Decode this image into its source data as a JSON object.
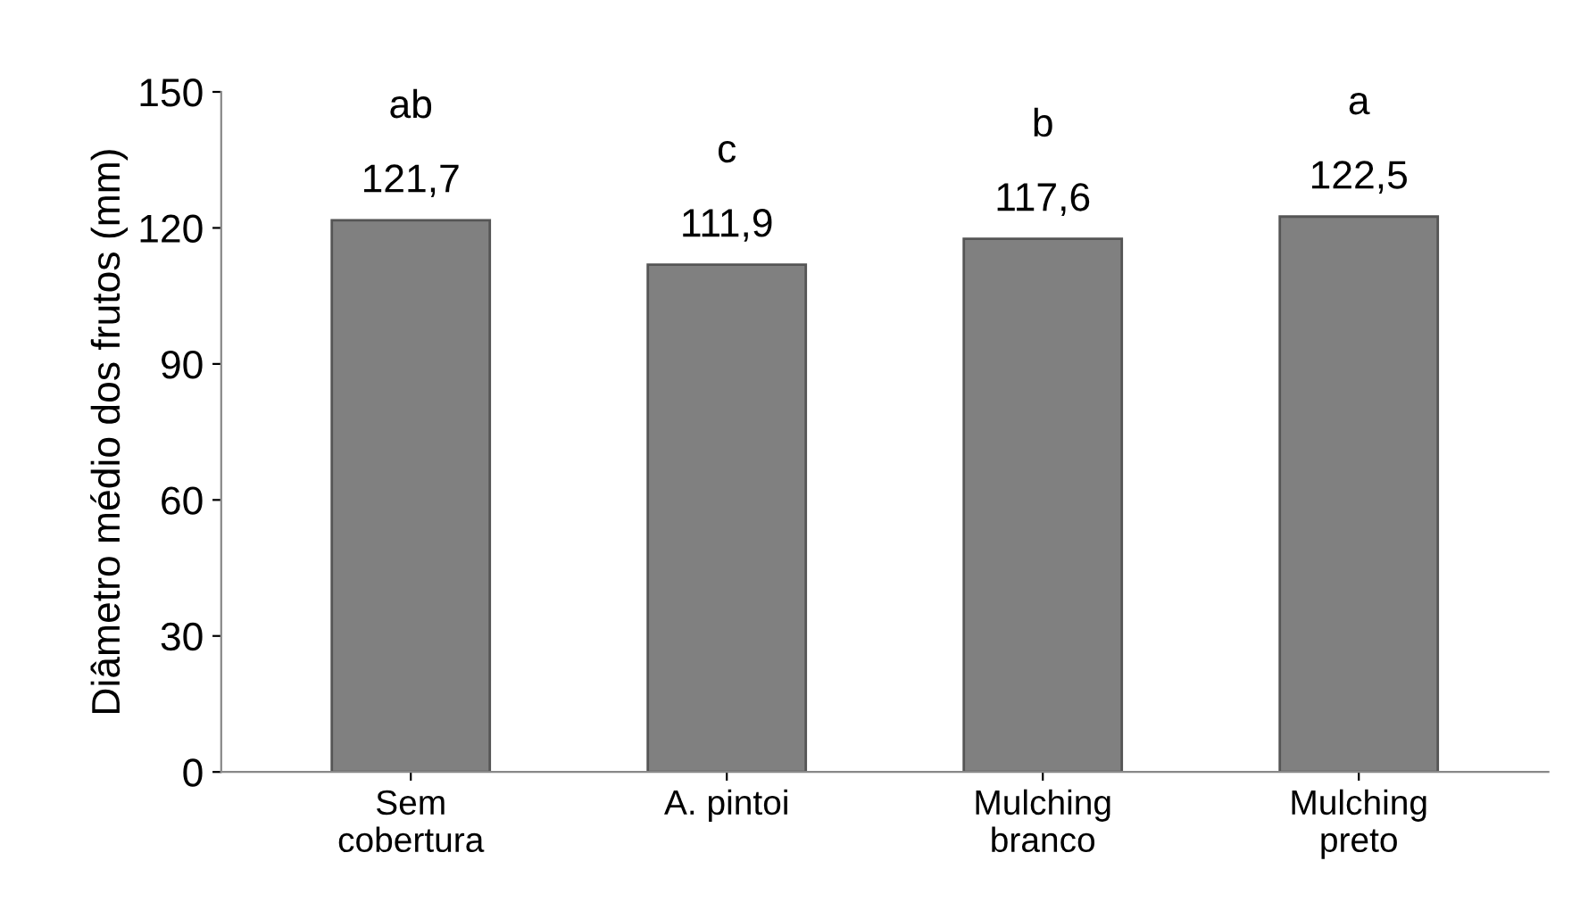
{
  "chart_data": {
    "type": "bar",
    "ylabel": "Diâmetro médio dos frutos (mm)",
    "categories": [
      "Sem\ncobertura",
      "A. pintoi",
      "Mulching\nbranco",
      "Mulching\npreto"
    ],
    "values": [
      121.7,
      111.9,
      117.6,
      122.5
    ],
    "color": "#808080",
    "value_labels": [
      "121,7",
      "111,9",
      "117,6",
      "122,5"
    ],
    "ylim": [
      0,
      150
    ],
    "yticks": [
      0,
      30,
      60,
      90,
      120,
      150
    ],
    "grid": false,
    "legend": false,
    "annotations": [
      {
        "text": "ab",
        "x": "Sem\ncobertura",
        "y": 121.7
      },
      {
        "text": "c",
        "x": "A. pintoi",
        "y": 111.9
      },
      {
        "text": "b",
        "x": "Mulching\nbranco",
        "y": 117.6
      },
      {
        "text": "a",
        "x": "Mulching\npreto",
        "y": 122.5
      }
    ]
  }
}
